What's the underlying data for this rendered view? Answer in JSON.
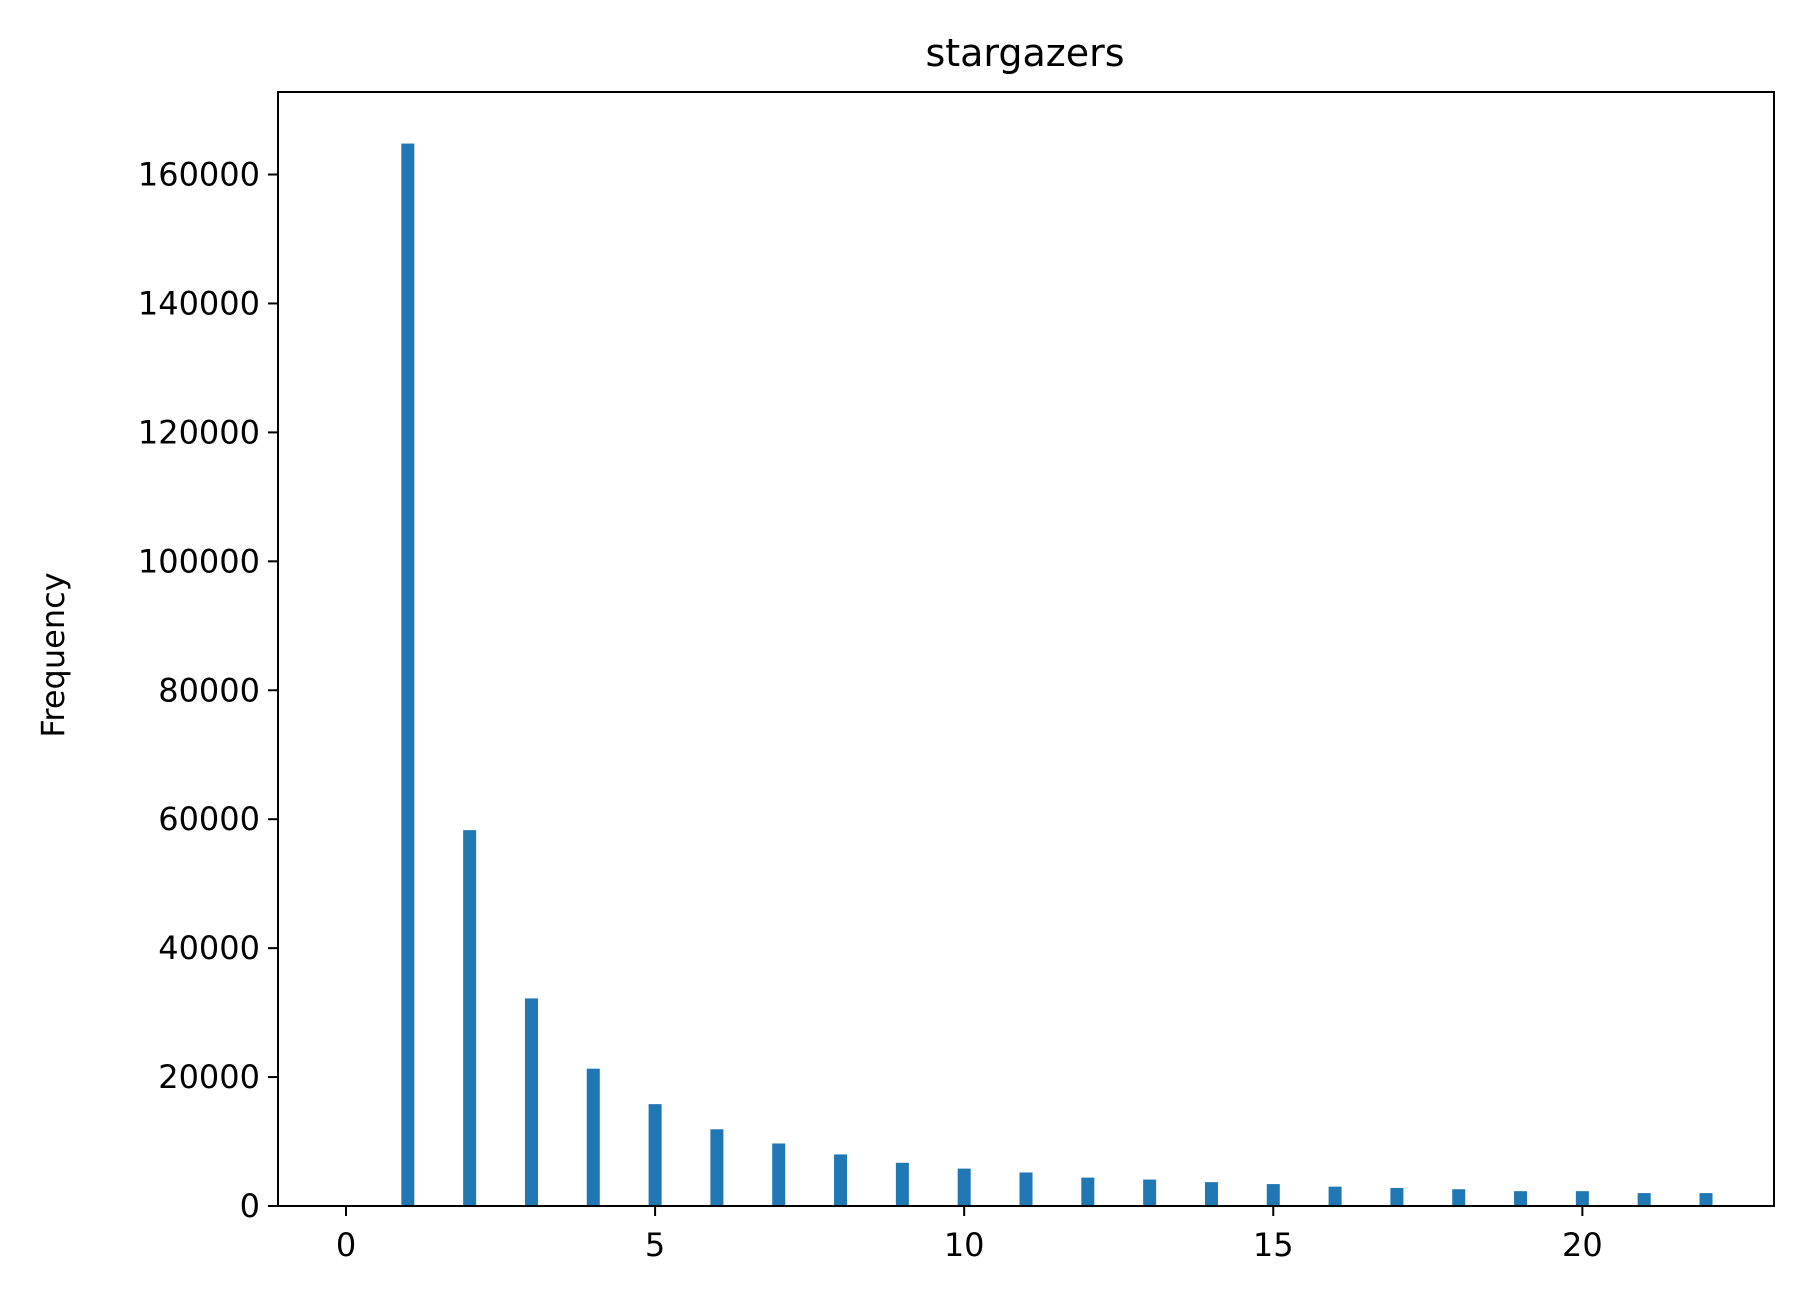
{
  "chart_data": {
    "type": "bar",
    "title": "stargazers",
    "xlabel": "",
    "ylabel": "Frequency",
    "x": [
      1,
      2,
      3,
      4,
      5,
      6,
      7,
      8,
      9,
      10,
      11,
      12,
      13,
      14,
      15,
      16,
      17,
      18,
      19,
      20,
      21,
      22
    ],
    "values": [
      164800,
      58300,
      32200,
      21300,
      15800,
      11900,
      9700,
      8000,
      6700,
      5800,
      5200,
      4400,
      4100,
      3700,
      3400,
      3000,
      2800,
      2600,
      2300,
      2300,
      2000,
      2000
    ],
    "xlim": [
      -1.1,
      23.1
    ],
    "ylim": [
      0,
      172800
    ],
    "xticks": [
      0,
      5,
      10,
      15,
      20
    ],
    "xtick_labels": [
      "0",
      "5",
      "10",
      "15",
      "20"
    ],
    "yticks": [
      0,
      20000,
      40000,
      60000,
      80000,
      100000,
      120000,
      140000,
      160000
    ],
    "ytick_labels": [
      "0",
      "20000",
      "40000",
      "60000",
      "80000",
      "100000",
      "120000",
      "140000",
      "160000"
    ],
    "color": "#1f77b4",
    "grid": false,
    "legend": "none"
  }
}
